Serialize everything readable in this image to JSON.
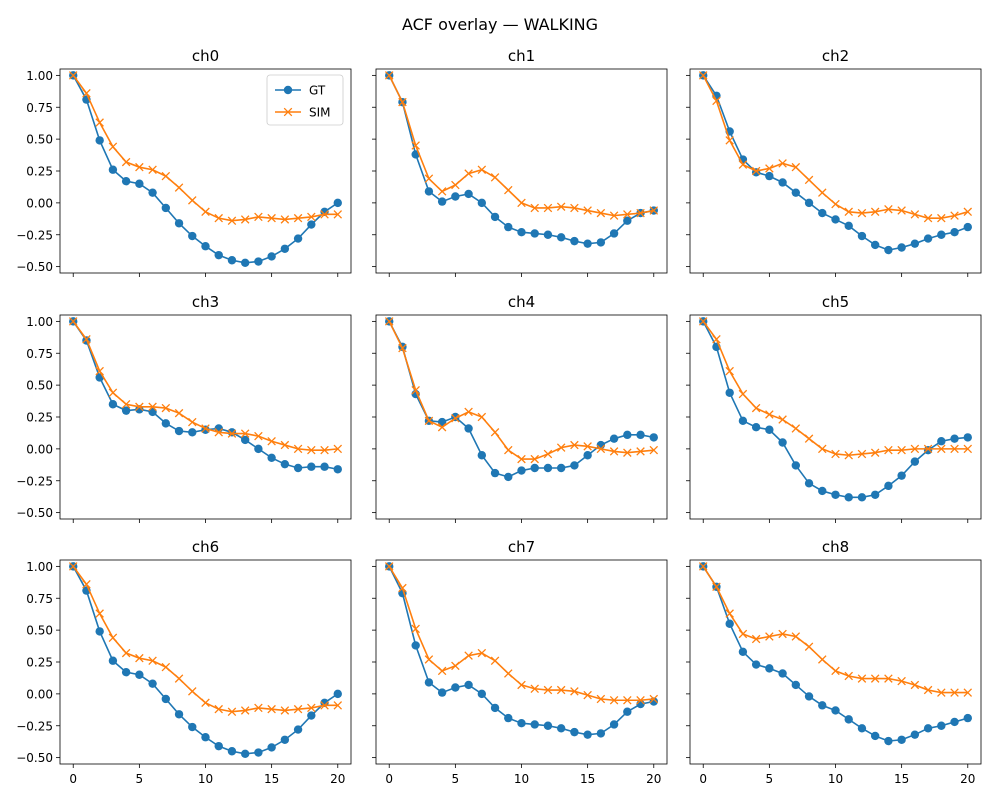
{
  "figure": {
    "title": "ACF overlay — WALKING"
  },
  "colors": {
    "gt": "#1f77b4",
    "sim": "#ff7f0e",
    "axis": "#000000"
  },
  "chart_data": {
    "type": "line",
    "title": "ACF overlay — WALKING",
    "x": [
      0,
      1,
      2,
      3,
      4,
      5,
      6,
      7,
      8,
      9,
      10,
      11,
      12,
      13,
      14,
      15,
      16,
      17,
      18,
      19,
      20
    ],
    "xlim": [
      -1,
      21
    ],
    "ylim": [
      -0.55,
      1.05
    ],
    "xticks": [
      0,
      5,
      10,
      15,
      20
    ],
    "xtick_labels": [
      "0",
      "5",
      "10",
      "15",
      "20"
    ],
    "yticks": [
      1.0,
      0.75,
      0.5,
      0.25,
      0.0,
      -0.25,
      -0.5
    ],
    "ytick_labels": [
      "1.00",
      "0.75",
      "0.50",
      "0.25",
      "0.00",
      "−0.25",
      "−0.50"
    ],
    "sharex": true,
    "sharey": true,
    "grid": false,
    "legend": {
      "placement": "upper right",
      "panel": "ch0",
      "entries": [
        "GT",
        "SIM"
      ]
    },
    "panels": [
      {
        "title": "ch0",
        "series": [
          {
            "name": "GT",
            "marker": "circle",
            "values": [
              1.0,
              0.81,
              0.49,
              0.26,
              0.17,
              0.15,
              0.08,
              -0.04,
              -0.16,
              -0.26,
              -0.34,
              -0.41,
              -0.45,
              -0.47,
              -0.46,
              -0.42,
              -0.36,
              -0.28,
              -0.17,
              -0.07,
              0.0
            ]
          },
          {
            "name": "SIM",
            "marker": "x",
            "values": [
              1.0,
              0.86,
              0.63,
              0.44,
              0.32,
              0.28,
              0.26,
              0.21,
              0.12,
              0.02,
              -0.07,
              -0.12,
              -0.14,
              -0.13,
              -0.11,
              -0.12,
              -0.13,
              -0.12,
              -0.11,
              -0.09,
              -0.09
            ]
          }
        ]
      },
      {
        "title": "ch1",
        "series": [
          {
            "name": "GT",
            "marker": "circle",
            "values": [
              1.0,
              0.79,
              0.38,
              0.09,
              0.01,
              0.05,
              0.07,
              0.0,
              -0.11,
              -0.19,
              -0.23,
              -0.24,
              -0.25,
              -0.27,
              -0.3,
              -0.32,
              -0.31,
              -0.24,
              -0.14,
              -0.08,
              -0.06
            ]
          },
          {
            "name": "SIM",
            "marker": "x",
            "values": [
              1.0,
              0.79,
              0.45,
              0.19,
              0.09,
              0.14,
              0.23,
              0.26,
              0.2,
              0.1,
              0.0,
              -0.04,
              -0.04,
              -0.03,
              -0.04,
              -0.06,
              -0.08,
              -0.1,
              -0.09,
              -0.08,
              -0.06
            ]
          }
        ]
      },
      {
        "title": "ch2",
        "series": [
          {
            "name": "GT",
            "marker": "circle",
            "values": [
              1.0,
              0.84,
              0.56,
              0.34,
              0.24,
              0.21,
              0.16,
              0.08,
              0.0,
              -0.08,
              -0.13,
              -0.18,
              -0.26,
              -0.33,
              -0.37,
              -0.35,
              -0.32,
              -0.28,
              -0.25,
              -0.23,
              -0.19
            ]
          },
          {
            "name": "SIM",
            "marker": "x",
            "values": [
              1.0,
              0.8,
              0.49,
              0.3,
              0.25,
              0.27,
              0.31,
              0.28,
              0.18,
              0.08,
              -0.01,
              -0.07,
              -0.08,
              -0.07,
              -0.05,
              -0.06,
              -0.09,
              -0.12,
              -0.12,
              -0.1,
              -0.07
            ]
          }
        ]
      },
      {
        "title": "ch3",
        "series": [
          {
            "name": "GT",
            "marker": "circle",
            "values": [
              1.0,
              0.85,
              0.56,
              0.35,
              0.3,
              0.31,
              0.29,
              0.2,
              0.14,
              0.13,
              0.15,
              0.16,
              0.13,
              0.07,
              0.0,
              -0.07,
              -0.12,
              -0.15,
              -0.14,
              -0.14,
              -0.16
            ]
          },
          {
            "name": "SIM",
            "marker": "x",
            "values": [
              1.0,
              0.86,
              0.61,
              0.44,
              0.35,
              0.33,
              0.33,
              0.32,
              0.28,
              0.21,
              0.16,
              0.13,
              0.12,
              0.12,
              0.1,
              0.06,
              0.03,
              0.0,
              -0.01,
              -0.01,
              0.0
            ]
          }
        ]
      },
      {
        "title": "ch4",
        "series": [
          {
            "name": "GT",
            "marker": "circle",
            "values": [
              1.0,
              0.8,
              0.43,
              0.22,
              0.21,
              0.25,
              0.16,
              -0.05,
              -0.19,
              -0.22,
              -0.17,
              -0.15,
              -0.15,
              -0.15,
              -0.13,
              -0.05,
              0.03,
              0.08,
              0.11,
              0.11,
              0.09
            ]
          },
          {
            "name": "SIM",
            "marker": "x",
            "values": [
              1.0,
              0.79,
              0.46,
              0.22,
              0.17,
              0.24,
              0.29,
              0.25,
              0.13,
              -0.01,
              -0.08,
              -0.08,
              -0.04,
              0.01,
              0.03,
              0.02,
              0.0,
              -0.02,
              -0.03,
              -0.02,
              -0.01
            ]
          }
        ]
      },
      {
        "title": "ch5",
        "series": [
          {
            "name": "GT",
            "marker": "circle",
            "values": [
              1.0,
              0.8,
              0.44,
              0.22,
              0.17,
              0.15,
              0.05,
              -0.13,
              -0.27,
              -0.33,
              -0.36,
              -0.38,
              -0.38,
              -0.36,
              -0.29,
              -0.21,
              -0.1,
              -0.01,
              0.06,
              0.08,
              0.09
            ]
          },
          {
            "name": "SIM",
            "marker": "x",
            "values": [
              1.0,
              0.86,
              0.61,
              0.43,
              0.32,
              0.27,
              0.23,
              0.16,
              0.08,
              0.0,
              -0.04,
              -0.05,
              -0.04,
              -0.03,
              -0.01,
              -0.01,
              0.0,
              0.0,
              0.0,
              0.0,
              0.0
            ]
          }
        ]
      },
      {
        "title": "ch6",
        "series": [
          {
            "name": "GT",
            "marker": "circle",
            "values": [
              1.0,
              0.81,
              0.49,
              0.26,
              0.17,
              0.15,
              0.08,
              -0.04,
              -0.16,
              -0.26,
              -0.34,
              -0.41,
              -0.45,
              -0.47,
              -0.46,
              -0.42,
              -0.36,
              -0.28,
              -0.17,
              -0.07,
              0.0
            ]
          },
          {
            "name": "SIM",
            "marker": "x",
            "values": [
              1.0,
              0.86,
              0.63,
              0.44,
              0.32,
              0.28,
              0.26,
              0.21,
              0.12,
              0.02,
              -0.07,
              -0.12,
              -0.14,
              -0.13,
              -0.11,
              -0.12,
              -0.13,
              -0.12,
              -0.11,
              -0.09,
              -0.09
            ]
          }
        ]
      },
      {
        "title": "ch7",
        "series": [
          {
            "name": "GT",
            "marker": "circle",
            "values": [
              1.0,
              0.79,
              0.38,
              0.09,
              0.01,
              0.05,
              0.07,
              0.0,
              -0.11,
              -0.19,
              -0.23,
              -0.24,
              -0.25,
              -0.27,
              -0.3,
              -0.32,
              -0.31,
              -0.24,
              -0.14,
              -0.08,
              -0.06
            ]
          },
          {
            "name": "SIM",
            "marker": "x",
            "values": [
              1.0,
              0.83,
              0.51,
              0.27,
              0.18,
              0.22,
              0.3,
              0.32,
              0.26,
              0.16,
              0.07,
              0.04,
              0.03,
              0.03,
              0.02,
              -0.01,
              -0.04,
              -0.05,
              -0.05,
              -0.05,
              -0.04
            ]
          }
        ]
      },
      {
        "title": "ch8",
        "series": [
          {
            "name": "GT",
            "marker": "circle",
            "values": [
              1.0,
              0.84,
              0.55,
              0.33,
              0.23,
              0.2,
              0.16,
              0.07,
              -0.02,
              -0.09,
              -0.13,
              -0.2,
              -0.27,
              -0.33,
              -0.37,
              -0.36,
              -0.32,
              -0.27,
              -0.25,
              -0.22,
              -0.19
            ]
          },
          {
            "name": "SIM",
            "marker": "x",
            "values": [
              1.0,
              0.84,
              0.63,
              0.47,
              0.43,
              0.45,
              0.47,
              0.45,
              0.37,
              0.27,
              0.18,
              0.14,
              0.12,
              0.12,
              0.12,
              0.1,
              0.07,
              0.03,
              0.01,
              0.01,
              0.01
            ]
          }
        ]
      }
    ]
  }
}
